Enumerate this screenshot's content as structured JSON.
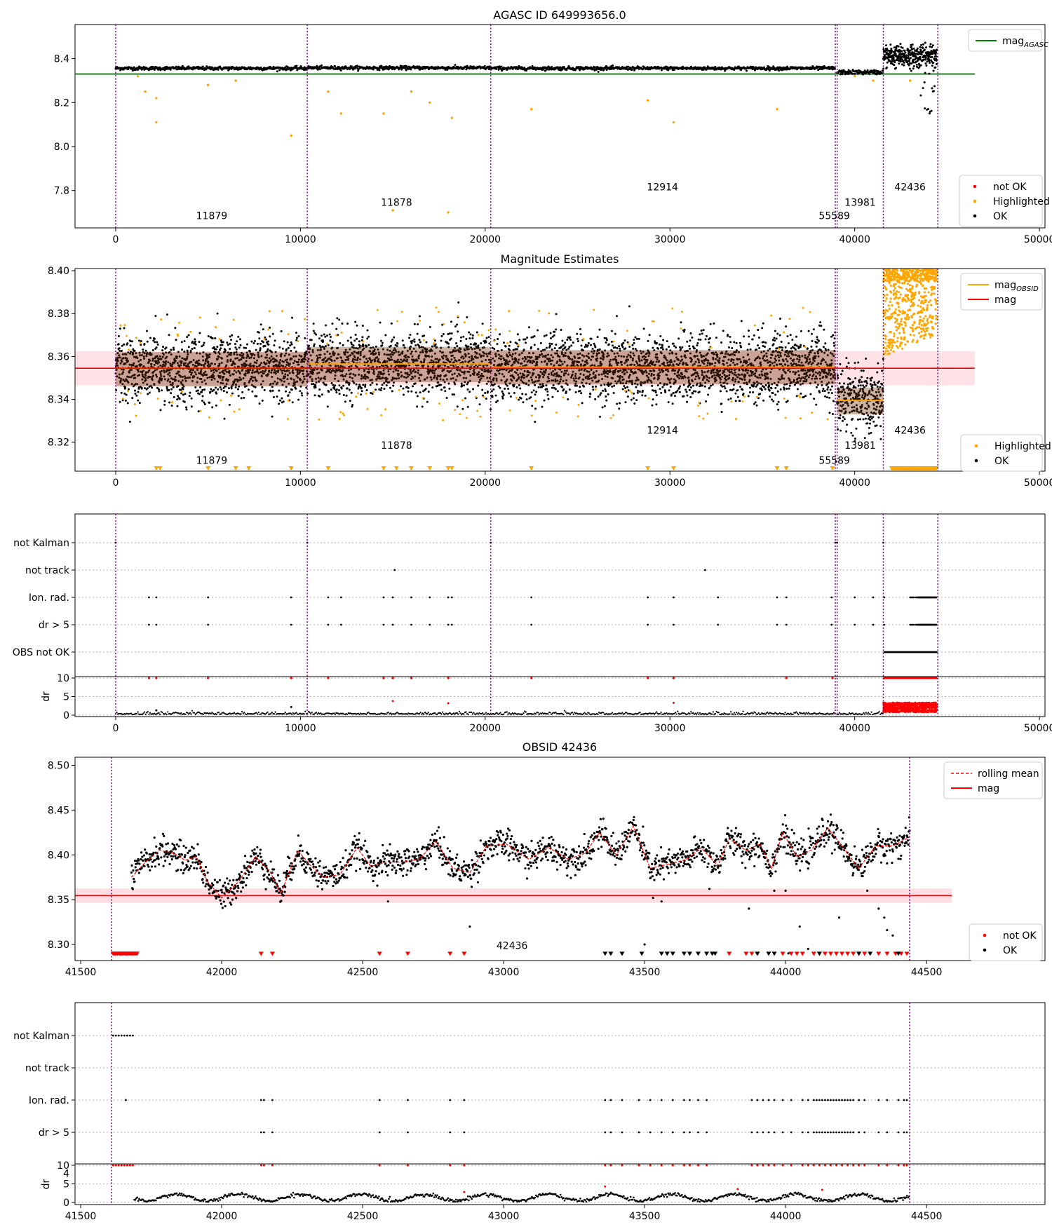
{
  "figure": {
    "colors": {
      "ok": "#000000",
      "not_ok": "#ff0000",
      "highlighted": "#ffa500",
      "agasc": "#008000",
      "mag": "#ff0000",
      "obsid_line": "#800080",
      "band": "#ffb6c1",
      "grid": "#b0b0b0"
    }
  },
  "chart_data": [
    {
      "id": "p1",
      "type": "scatter",
      "title": "AGASC ID 649993656.0",
      "xlim": [
        -2200,
        50300
      ],
      "ylim": [
        7.63,
        8.555
      ],
      "xticks": [
        0,
        10000,
        20000,
        30000,
        40000,
        50000
      ],
      "yticks": [
        7.8,
        8.0,
        8.2,
        8.4
      ],
      "ytick_labels": [
        "7.8",
        "8.0",
        "8.2",
        "8.4"
      ],
      "legend_top": [
        {
          "label": "mag",
          "sub": "AGASC",
          "kind": "line",
          "color": "#008000"
        }
      ],
      "legend_bottom": [
        {
          "label": "not OK",
          "kind": "dot",
          "color": "#ff0000"
        },
        {
          "label": "Highlighted",
          "kind": "dot",
          "color": "#ffa500"
        },
        {
          "label": "OK",
          "kind": "dot",
          "color": "#000000"
        }
      ],
      "agasc_mag": 8.33,
      "obsid_boundaries": [
        0,
        10370,
        20300,
        38950,
        39050,
        41550,
        44500
      ],
      "segments": [
        {
          "x0": 0,
          "x1": 10370,
          "mean": 8.356,
          "sd": 0.004
        },
        {
          "x0": 10370,
          "x1": 20300,
          "mean": 8.358,
          "sd": 0.004
        },
        {
          "x0": 20300,
          "x1": 38950,
          "mean": 8.356,
          "sd": 0.004
        },
        {
          "x0": 39050,
          "x1": 41550,
          "mean": 8.338,
          "sd": 0.005
        },
        {
          "x0": 41550,
          "x1": 44450,
          "mean": 8.41,
          "sd": 0.025
        }
      ],
      "annotations": [
        {
          "text": "11879",
          "x": 5200,
          "y": 7.67
        },
        {
          "text": "11878",
          "x": 15200,
          "y": 7.73
        },
        {
          "text": "12914",
          "x": 29600,
          "y": 7.8
        },
        {
          "text": "55589",
          "x": 38900,
          "y": 7.67
        },
        {
          "text": "13981",
          "x": 40300,
          "y": 7.73
        },
        {
          "text": "42436",
          "x": 43000,
          "y": 7.8
        }
      ],
      "highlighted_points": [
        [
          1200,
          8.32
        ],
        [
          1600,
          8.25
        ],
        [
          2200,
          8.22
        ],
        [
          2200,
          8.11
        ],
        [
          5000,
          8.28
        ],
        [
          6500,
          8.3
        ],
        [
          9500,
          8.05
        ],
        [
          11500,
          8.25
        ],
        [
          12200,
          8.15
        ],
        [
          14500,
          8.15
        ],
        [
          15000,
          7.71
        ],
        [
          16000,
          8.25
        ],
        [
          17000,
          8.2
        ],
        [
          18000,
          7.7
        ],
        [
          18200,
          8.13
        ],
        [
          22500,
          8.17
        ],
        [
          28800,
          8.21
        ],
        [
          30200,
          8.11
        ],
        [
          35800,
          8.17
        ],
        [
          40000,
          8.32
        ],
        [
          41000,
          8.3
        ],
        [
          43000,
          8.3
        ]
      ]
    },
    {
      "id": "p2",
      "type": "scatter",
      "title": "Magnitude Estimates",
      "xlim": [
        -2200,
        50300
      ],
      "ylim": [
        8.3065,
        8.401
      ],
      "xticks": [
        0,
        10000,
        20000,
        30000,
        40000,
        50000
      ],
      "yticks": [
        8.32,
        8.34,
        8.36,
        8.38,
        8.4
      ],
      "ytick_labels": [
        "8.32",
        "8.34",
        "8.36",
        "8.38",
        "8.40"
      ],
      "legend_top": [
        {
          "label": "mag",
          "sub": "OBSID",
          "kind": "line",
          "color": "#ffa500"
        },
        {
          "label": "mag",
          "kind": "line",
          "color": "#ff0000"
        }
      ],
      "legend_bottom": [
        {
          "label": "Highlighted",
          "kind": "dot",
          "color": "#ffa500"
        },
        {
          "label": "OK",
          "kind": "dot",
          "color": "#000000"
        }
      ],
      "mag": 8.3545,
      "mag_band": [
        8.3465,
        8.3625
      ],
      "obsid_boundaries": [
        0,
        10370,
        20300,
        38950,
        39050,
        41550,
        44500
      ],
      "segments": [
        {
          "x0": 0,
          "x1": 10370,
          "mean": 8.3545,
          "sd": 0.0075,
          "band": [
            8.346,
            8.362
          ]
        },
        {
          "x0": 10370,
          "x1": 20300,
          "mean": 8.3565,
          "sd": 0.0075,
          "band": [
            8.348,
            8.3645
          ]
        },
        {
          "x0": 20300,
          "x1": 38950,
          "mean": 8.355,
          "sd": 0.0075,
          "band": [
            8.347,
            8.363
          ]
        },
        {
          "x0": 39050,
          "x1": 41550,
          "mean": 8.3395,
          "sd": 0.007,
          "band": [
            8.333,
            8.3455
          ]
        }
      ],
      "annotations": [
        {
          "text": "11879",
          "x": 5200,
          "y": 8.31
        },
        {
          "text": "11878",
          "x": 15200,
          "y": 8.317
        },
        {
          "text": "12914",
          "x": 29600,
          "y": 8.324
        },
        {
          "text": "55589",
          "x": 38900,
          "y": 8.31
        },
        {
          "text": "13981",
          "x": 40300,
          "y": 8.317
        },
        {
          "text": "42436",
          "x": 43000,
          "y": 8.324
        }
      ]
    },
    {
      "id": "p3",
      "type": "scatter",
      "xlim": [
        -2200,
        50300
      ],
      "xticks": [
        0,
        10000,
        20000,
        30000,
        40000,
        50000
      ],
      "flag_labels": [
        "not Kalman",
        "not track",
        "Ion. rad.",
        "dr > 5",
        "OBS not OK"
      ],
      "dr_ylabel": "dr",
      "dr_ticks": [
        "0",
        "5",
        "10"
      ],
      "obsid_boundaries": [
        0,
        10370,
        20300,
        38950,
        39050,
        41550,
        44500
      ],
      "flag_points": {
        "not Kalman": [
          0,
          10370,
          20300,
          38950,
          39050,
          41550
        ],
        "not track": [
          15100,
          31900
        ],
        "Ion. rad.": [
          1800,
          2200,
          5000,
          9500,
          11500,
          12200,
          14500,
          15000,
          16000,
          17000,
          18000,
          18200,
          22500,
          28800,
          30200,
          32600,
          35800,
          36300,
          38750,
          40000,
          41000
        ],
        "dr > 5": [
          1800,
          2200,
          5000,
          9500,
          11500,
          12200,
          14500,
          15000,
          16000,
          17000,
          18000,
          18200,
          22500,
          28800,
          30200,
          32600,
          35800,
          36300,
          38750,
          40000,
          41000
        ],
        "OBS not OK": []
      }
    },
    {
      "id": "p4",
      "type": "line",
      "title": "OBSID 42436",
      "xlim": [
        41480,
        44920
      ],
      "ylim": [
        8.282,
        8.509
      ],
      "xticks": [
        41500,
        42000,
        42500,
        43000,
        43500,
        44000,
        44500
      ],
      "yticks": [
        8.3,
        8.35,
        8.4,
        8.45,
        8.5
      ],
      "ytick_labels": [
        "8.30",
        "8.35",
        "8.40",
        "8.45",
        "8.50"
      ],
      "legend_top": [
        {
          "label": "rolling mean",
          "kind": "dash",
          "color": "#ff0000"
        },
        {
          "label": "mag",
          "kind": "line",
          "color": "#ff0000"
        }
      ],
      "legend_bottom": [
        {
          "label": "not OK",
          "kind": "dot",
          "color": "#ff0000"
        },
        {
          "label": "OK",
          "kind": "dot",
          "color": "#000000"
        }
      ],
      "mag": 8.3545,
      "mag_band": [
        8.3465,
        8.3625
      ],
      "obsid_boundaries": [
        41610,
        44440
      ],
      "annotation": {
        "text": "42436",
        "x": 43030,
        "y": 8.295
      },
      "rolling_mean": [
        [
          41680,
          8.375
        ],
        [
          41730,
          8.392
        ],
        [
          41780,
          8.405
        ],
        [
          41830,
          8.402
        ],
        [
          41870,
          8.394
        ],
        [
          41910,
          8.398
        ],
        [
          41950,
          8.37
        ],
        [
          42000,
          8.352
        ],
        [
          42060,
          8.37
        ],
        [
          42120,
          8.398
        ],
        [
          42170,
          8.382
        ],
        [
          42210,
          8.357
        ],
        [
          42270,
          8.405
        ],
        [
          42310,
          8.39
        ],
        [
          42360,
          8.375
        ],
        [
          42420,
          8.378
        ],
        [
          42480,
          8.408
        ],
        [
          42530,
          8.387
        ],
        [
          42580,
          8.392
        ],
        [
          42640,
          8.392
        ],
        [
          42700,
          8.395
        ],
        [
          42760,
          8.415
        ],
        [
          42820,
          8.385
        ],
        [
          42880,
          8.38
        ],
        [
          42940,
          8.41
        ],
        [
          43010,
          8.412
        ],
        [
          43090,
          8.395
        ],
        [
          43160,
          8.408
        ],
        [
          43230,
          8.395
        ],
        [
          43290,
          8.402
        ],
        [
          43340,
          8.425
        ],
        [
          43400,
          8.4
        ],
        [
          43460,
          8.432
        ],
        [
          43520,
          8.385
        ],
        [
          43590,
          8.39
        ],
        [
          43650,
          8.395
        ],
        [
          43700,
          8.408
        ],
        [
          43760,
          8.388
        ],
        [
          43800,
          8.418
        ],
        [
          43860,
          8.405
        ],
        [
          43910,
          8.412
        ],
        [
          43950,
          8.385
        ],
        [
          43990,
          8.425
        ],
        [
          44040,
          8.398
        ],
        [
          44090,
          8.405
        ],
        [
          44150,
          8.43
        ],
        [
          44200,
          8.41
        ],
        [
          44260,
          8.385
        ],
        [
          44320,
          8.41
        ],
        [
          44380,
          8.41
        ],
        [
          44440,
          8.42
        ]
      ],
      "low_black": [
        [
          42020,
          8.36
        ],
        [
          42590,
          8.348
        ],
        [
          42880,
          8.32
        ],
        [
          43500,
          8.3
        ],
        [
          43530,
          8.352
        ],
        [
          43560,
          8.348
        ],
        [
          43730,
          8.362
        ],
        [
          43870,
          8.34
        ],
        [
          43960,
          8.36
        ],
        [
          44010,
          8.29
        ],
        [
          44050,
          8.32
        ],
        [
          44080,
          8.295
        ],
        [
          44190,
          8.33
        ],
        [
          44290,
          8.36
        ],
        [
          44330,
          8.34
        ],
        [
          44350,
          8.33
        ],
        [
          44360,
          8.316
        ],
        [
          44380,
          8.31
        ],
        [
          44000,
          8.36
        ]
      ],
      "red_markers": [
        41620,
        41640,
        41660,
        41680,
        41700,
        42140,
        42180,
        42560,
        42660,
        42810,
        42860,
        43800,
        43860,
        43880,
        43900,
        43990,
        44020,
        44040,
        44060,
        44100,
        44120,
        44140,
        44160,
        44180,
        44200,
        44220,
        44240,
        44260,
        44280,
        44330,
        44360,
        44390,
        44410,
        44430
      ],
      "black_markers": [
        43360,
        43380,
        43420,
        43490,
        43560,
        43580,
        43600,
        43640,
        43660,
        43690,
        43720,
        43740,
        43750,
        43900,
        43940,
        43960,
        44120,
        44260,
        44300,
        44400
      ]
    },
    {
      "id": "p5",
      "type": "scatter",
      "xlim": [
        41480,
        44920
      ],
      "xticks": [
        41500,
        42000,
        42500,
        43000,
        43500,
        44000,
        44500
      ],
      "flag_labels": [
        "not Kalman",
        "not track",
        "Ion. rad.",
        "dr > 5"
      ],
      "dr_ylabel": "dr",
      "dr_ticks": [
        "0",
        "5",
        "10"
      ],
      "stray_tick": "4",
      "obsid_boundaries": [
        41610,
        44440
      ],
      "flag_points": {
        "not Kalman": [
          41615,
          41625,
          41635,
          41645,
          41655,
          41665,
          41675,
          41685
        ],
        "not track": [],
        "Ion. rad.": [
          41660,
          42140,
          42150,
          42180,
          42560,
          42660,
          42810,
          42860,
          43360,
          43380,
          43420,
          43480,
          43520,
          43560,
          43600,
          43640,
          43660,
          43690,
          43720,
          43880,
          43900,
          43920,
          43940,
          43960,
          43990,
          44020,
          44060,
          44080,
          44100,
          44110,
          44120,
          44130,
          44140,
          44150,
          44160,
          44170,
          44180,
          44190,
          44200,
          44210,
          44220,
          44230,
          44240,
          44260,
          44280,
          44330,
          44360,
          44400,
          44420,
          44430
        ],
        "dr > 5": [
          42140,
          42150,
          42180,
          42560,
          42660,
          42810,
          42860,
          43360,
          43380,
          43420,
          43480,
          43520,
          43560,
          43600,
          43640,
          43660,
          43690,
          43720,
          43880,
          43900,
          43920,
          43940,
          43960,
          43990,
          44020,
          44060,
          44080,
          44100,
          44110,
          44120,
          44130,
          44140,
          44150,
          44160,
          44170,
          44180,
          44190,
          44200,
          44210,
          44220,
          44230,
          44240,
          44260,
          44280,
          44330,
          44360,
          44400,
          44420,
          44430
        ]
      },
      "dr_red": [
        41615,
        41625,
        41635,
        41645,
        41655,
        41665,
        41675,
        41685,
        42140,
        42150,
        42180,
        42560,
        42660,
        42810,
        42860,
        43360,
        43380,
        43420,
        43480,
        43520,
        43560,
        43600,
        43640,
        43660,
        43690,
        43720,
        43880,
        43900,
        43920,
        43940,
        43960,
        43990,
        44020,
        44060,
        44080,
        44100,
        44120,
        44140,
        44160,
        44180,
        44200,
        44220,
        44240,
        44260,
        44280,
        44330,
        44360,
        44400,
        44420,
        44430
      ]
    }
  ]
}
